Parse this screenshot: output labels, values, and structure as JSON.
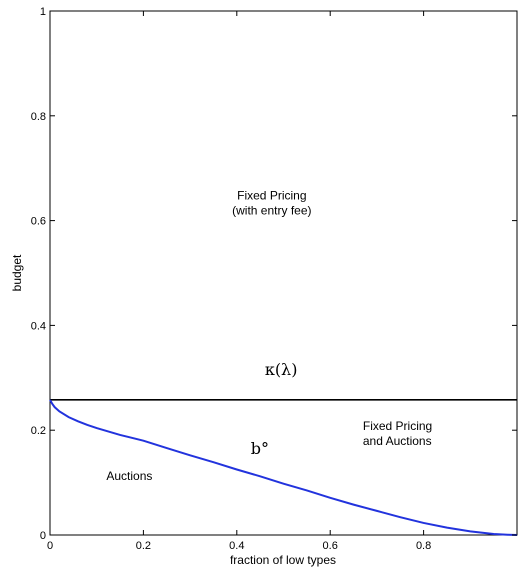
{
  "chart_data": {
    "type": "line",
    "xlabel": "fraction of low types",
    "ylabel": "budget",
    "xlim": [
      0,
      1
    ],
    "ylim": [
      0,
      1
    ],
    "x_ticks": [
      "0",
      "0.2",
      "0.4",
      "0.6",
      "0.8"
    ],
    "y_ticks": [
      "0",
      "0.2",
      "0.4",
      "0.6",
      "0.8",
      "1"
    ],
    "grid": false,
    "series": [
      {
        "name": "κ(λ)",
        "color": "#000000",
        "x": [
          0,
          1
        ],
        "y": [
          0.258,
          0.258
        ]
      },
      {
        "name": "b°",
        "color": "#2233dd",
        "x": [
          0,
          0.005,
          0.01,
          0.02,
          0.04,
          0.06,
          0.08,
          0.1,
          0.15,
          0.2,
          0.25,
          0.3,
          0.35,
          0.4,
          0.45,
          0.5,
          0.55,
          0.6,
          0.65,
          0.7,
          0.75,
          0.8,
          0.85,
          0.9,
          0.95,
          0.98,
          1.0
        ],
        "y": [
          0.258,
          0.25,
          0.244,
          0.236,
          0.225,
          0.217,
          0.21,
          0.204,
          0.191,
          0.18,
          0.166,
          0.152,
          0.139,
          0.125,
          0.112,
          0.098,
          0.085,
          0.071,
          0.058,
          0.046,
          0.034,
          0.023,
          0.014,
          0.007,
          0.002,
          0.0005,
          0
        ]
      }
    ],
    "annotations": [
      {
        "id": "fixed-pricing",
        "lines": [
          "Fixed Pricing",
          "(with entry fee)"
        ],
        "x": 0.475,
        "y": 0.64
      },
      {
        "id": "kappa",
        "text": "κ(λ)",
        "x": 0.46,
        "y": 0.305
      },
      {
        "id": "fixed-pricing-auctions",
        "lines": [
          "Fixed Pricing",
          "and Auctions"
        ],
        "x": 0.67,
        "y": 0.2
      },
      {
        "id": "b-circ",
        "text": "b°",
        "x": 0.43,
        "y": 0.155
      },
      {
        "id": "auctions",
        "text": "Auctions",
        "x": 0.17,
        "y": 0.105
      }
    ]
  }
}
